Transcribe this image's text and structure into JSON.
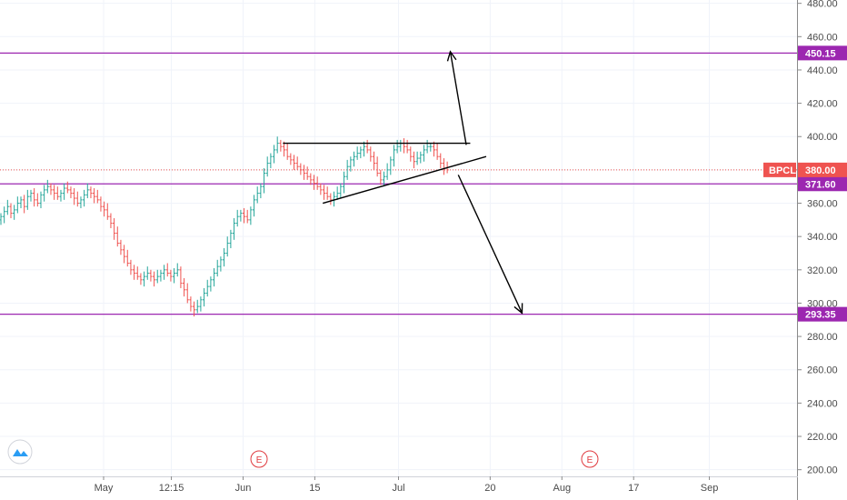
{
  "chart_data": {
    "type": "candlestick",
    "symbol": "BPCL",
    "last_price": "380.00",
    "colors": {
      "up": "#26a69a",
      "down": "#ef5350",
      "level": "#9c27b0",
      "price_tag": "#ef5350",
      "grid": "#f0f3fa",
      "drawing": "#000000",
      "earnings": "#e0393e"
    },
    "y_axis": {
      "range": [
        196,
        482
      ],
      "ticks": [
        "480.00",
        "460.00",
        "440.00",
        "420.00",
        "400.00",
        "380.00",
        "360.00",
        "340.00",
        "320.00",
        "300.00",
        "280.00",
        "260.00",
        "240.00",
        "220.00",
        "200.00"
      ]
    },
    "x_axis": {
      "range": [
        0,
        100
      ],
      "ticks": [
        {
          "label": "May",
          "x": 13
        },
        {
          "label": "12:15",
          "x": 21.5
        },
        {
          "label": "Jun",
          "x": 30.5
        },
        {
          "label": "15",
          "x": 39.5
        },
        {
          "label": "Jul",
          "x": 50
        },
        {
          "label": "20",
          "x": 61.5
        },
        {
          "label": "Aug",
          "x": 70.5
        },
        {
          "label": "17",
          "x": 79.5
        },
        {
          "label": "Sep",
          "x": 89
        }
      ]
    },
    "horizontal_levels": [
      {
        "label": "450.15",
        "value": 450.15
      },
      {
        "label": "371.60",
        "value": 371.6
      },
      {
        "label": "293.35",
        "value": 293.35
      }
    ],
    "earnings_markers": [
      {
        "label": "E",
        "x": 32.5
      },
      {
        "label": "E",
        "x": 74
      }
    ],
    "trendlines": [
      {
        "x1": 35.5,
        "y1": 396,
        "x2": 59,
        "y2": 396
      },
      {
        "x1": 40.5,
        "y1": 360,
        "x2": 61,
        "y2": 388
      },
      {
        "x1": 58.5,
        "y1": 395,
        "x2": 56.5,
        "y2": 451,
        "arrow": true
      },
      {
        "x1": 57.5,
        "y1": 377,
        "x2": 65.5,
        "y2": 294,
        "arrow": true
      }
    ],
    "closes": [
      352,
      355,
      358,
      354,
      356,
      360,
      362,
      358,
      364,
      366,
      362,
      360,
      365,
      368,
      370,
      368,
      366,
      364,
      366,
      369,
      368,
      366,
      363,
      360,
      362,
      365,
      368,
      366,
      364,
      362,
      358,
      356,
      352,
      348,
      342,
      336,
      332,
      328,
      324,
      320,
      318,
      316,
      314,
      316,
      318,
      316,
      314,
      316,
      318,
      320,
      318,
      316,
      318,
      320,
      312,
      308,
      302,
      298,
      296,
      298,
      302,
      306,
      310,
      314,
      318,
      322,
      326,
      330,
      336,
      342,
      348,
      352,
      354,
      352,
      350,
      356,
      362,
      366,
      370,
      378,
      384,
      388,
      392,
      396,
      394,
      392,
      388,
      386,
      384,
      382,
      380,
      378,
      376,
      374,
      372,
      370,
      368,
      366,
      364,
      362,
      364,
      366,
      370,
      376,
      382,
      386,
      388,
      390,
      392,
      394,
      392,
      388,
      384,
      378,
      374,
      376,
      380,
      386,
      392,
      394,
      396,
      394,
      392,
      388,
      385,
      387,
      389,
      392,
      394,
      394,
      392,
      388,
      384,
      381,
      380
    ]
  }
}
